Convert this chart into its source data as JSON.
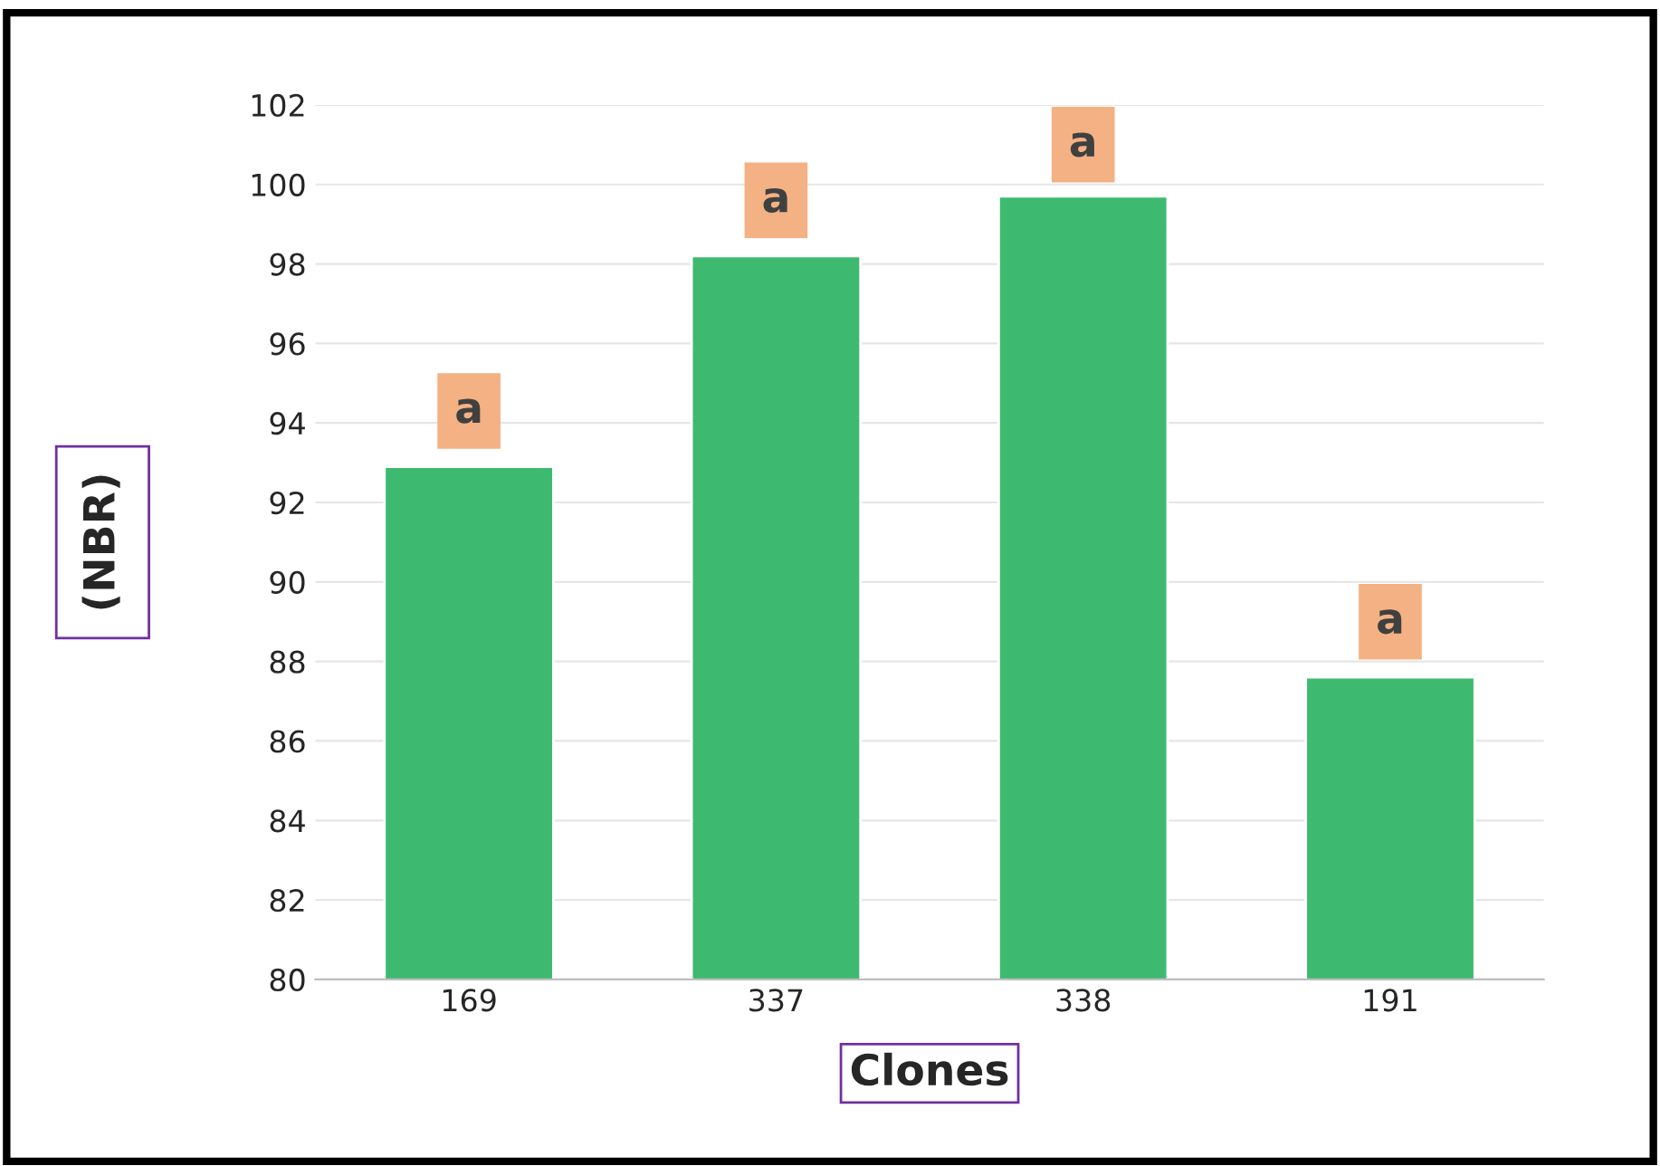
{
  "chart_data": {
    "type": "bar",
    "xlabel": "Clones",
    "ylabel": "(NBR)",
    "categories": [
      "169",
      "337",
      "338",
      "191"
    ],
    "values": [
      92.9,
      98.2,
      99.7,
      87.6
    ],
    "color": "#3dba6f",
    "ylim": [
      80,
      102
    ],
    "yticks": [
      80,
      82,
      84,
      86,
      88,
      90,
      92,
      94,
      96,
      98,
      100,
      102
    ],
    "grid": "y",
    "annotations": [
      {
        "text": "a",
        "x": "169",
        "y": 94.3
      },
      {
        "text": "a",
        "x": "337",
        "y": 99.6
      },
      {
        "text": "a",
        "x": "338",
        "y": 101.0
      },
      {
        "text": "a",
        "x": "191",
        "y": 89.0
      }
    ]
  }
}
